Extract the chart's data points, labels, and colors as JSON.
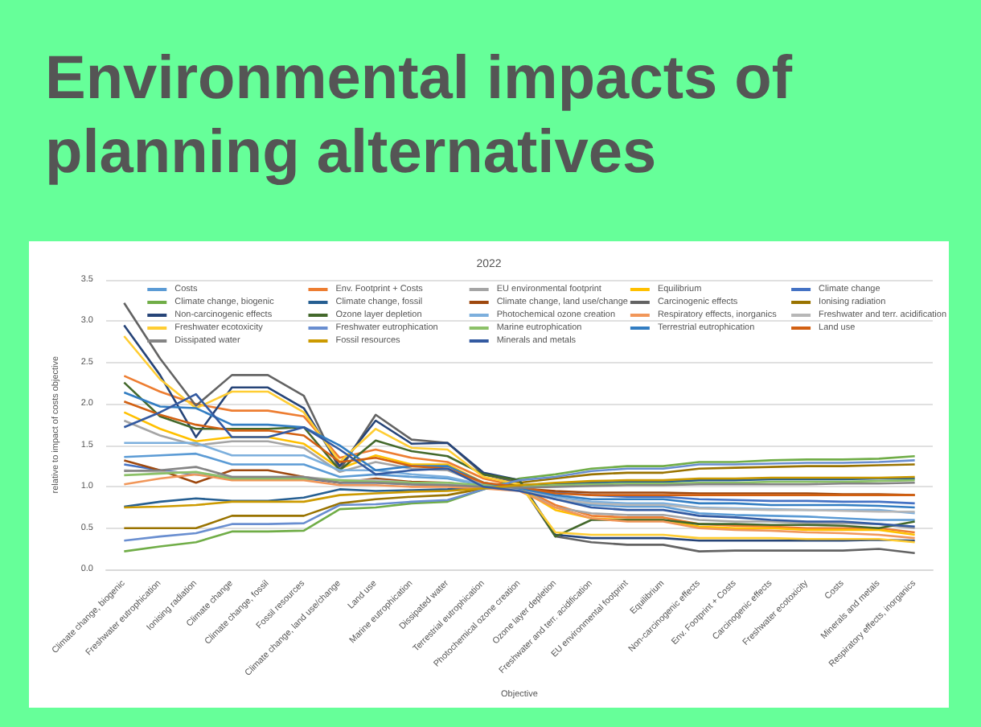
{
  "chart_data": {
    "type": "line",
    "title": "2022",
    "subtitle": "Environmental impacts of planning alternatives",
    "xlabel": "Objective",
    "ylabel": "relative to impact of costs objective",
    "categories": [
      "Climate change, biogenic",
      "Freshwater eutrophication",
      "Ionising radiation",
      "Climate change",
      "Climate change, fossil",
      "Fossil resources",
      "Climate change, land use/change",
      "Land use",
      "Marine eutrophication",
      "Dissipated water",
      "Terrestrial eutrophication",
      "Photochemical ozone creation",
      "Ozone layer depletion",
      "Freshwater and terr. acidification",
      "EU environmental footprint",
      "Equilibrium",
      "Non-carcinogenic effects",
      "Env. Footprint + Costs",
      "Carcinogenic effects",
      "Freshwater ecotoxicity",
      "Costs",
      "Minerals and metals",
      "Respiratory effects, inorganics"
    ],
    "ylim": [
      0,
      3.5
    ],
    "yticks": [
      {
        "value": 0,
        "label": "0.0"
      },
      {
        "value": 0.5,
        "label": "0.5"
      },
      {
        "value": 1,
        "label": "1.0"
      },
      {
        "value": 1.5,
        "label": "1.5"
      },
      {
        "value": 2,
        "label": "2.0"
      },
      {
        "value": 2.5,
        "label": "2.5"
      },
      {
        "value": 3,
        "label": "3.0"
      },
      {
        "value": 3.5,
        "label": "3.5"
      }
    ],
    "grid": "y",
    "legend": "top",
    "marker": "none",
    "line_style": "solid",
    "series": [
      {
        "name": "Costs",
        "color": "#5b9bd5",
        "values": [
          1.36,
          1.38,
          1.4,
          1.27,
          1.27,
          1.27,
          1.12,
          1.15,
          1.12,
          1.1,
          1.02,
          0.98,
          0.85,
          0.78,
          0.76,
          0.76,
          0.68,
          0.66,
          0.65,
          0.64,
          0.62,
          0.6,
          0.6
        ]
      },
      {
        "name": "Env. Footprint + Costs",
        "color": "#ed7d31",
        "values": [
          2.34,
          2.15,
          2.0,
          1.92,
          1.92,
          1.85,
          1.35,
          1.45,
          1.35,
          1.3,
          1.1,
          1.0,
          0.78,
          0.65,
          0.63,
          0.63,
          0.55,
          0.53,
          0.52,
          0.5,
          0.5,
          0.5,
          0.45
        ]
      },
      {
        "name": "EU environmental footprint",
        "color": "#a5a5a5",
        "values": [
          1.8,
          1.62,
          1.5,
          1.55,
          1.55,
          1.47,
          1.18,
          1.3,
          1.22,
          1.2,
          1.03,
          0.98,
          0.75,
          0.68,
          0.66,
          0.66,
          0.6,
          0.58,
          0.58,
          0.56,
          0.56,
          0.55,
          0.5
        ]
      },
      {
        "name": "Equilibrium",
        "color": "#ffc000",
        "values": [
          1.9,
          1.7,
          1.55,
          1.6,
          1.6,
          1.52,
          1.22,
          1.38,
          1.27,
          1.27,
          1.05,
          0.98,
          0.72,
          0.62,
          0.6,
          0.6,
          0.52,
          0.5,
          0.5,
          0.48,
          0.48,
          0.48,
          0.42
        ]
      },
      {
        "name": "Climate change",
        "color": "#4472c4",
        "values": [
          1.27,
          1.2,
          1.15,
          1.1,
          1.1,
          1.1,
          1.05,
          1.05,
          1.03,
          1.02,
          1.0,
          0.98,
          0.93,
          0.9,
          0.88,
          0.88,
          0.85,
          0.84,
          0.83,
          0.83,
          0.82,
          0.82,
          0.8
        ]
      },
      {
        "name": "Climate change, biogenic",
        "color": "#70ad47",
        "values": [
          0.22,
          0.28,
          0.33,
          0.46,
          0.46,
          0.47,
          0.73,
          0.75,
          0.8,
          0.82,
          0.97,
          1.1,
          1.15,
          1.22,
          1.25,
          1.25,
          1.3,
          1.3,
          1.32,
          1.33,
          1.33,
          1.34,
          1.37
        ]
      },
      {
        "name": "Climate change, fossil",
        "color": "#255e91",
        "values": [
          0.76,
          0.82,
          0.86,
          0.83,
          0.83,
          0.87,
          0.97,
          0.95,
          0.96,
          0.97,
          0.99,
          1.02,
          1.04,
          1.05,
          1.06,
          1.06,
          1.08,
          1.08,
          1.09,
          1.09,
          1.09,
          1.1,
          1.1
        ]
      },
      {
        "name": "Climate change, land use/change",
        "color": "#9e480e",
        "values": [
          1.32,
          1.2,
          1.05,
          1.2,
          1.2,
          1.12,
          1.05,
          1.1,
          1.06,
          1.05,
          1.0,
          0.98,
          0.95,
          0.93,
          0.93,
          0.93,
          0.92,
          0.92,
          0.92,
          0.92,
          0.91,
          0.91,
          0.9
        ]
      },
      {
        "name": "Carcinogenic effects",
        "color": "#636363",
        "values": [
          3.22,
          2.55,
          1.98,
          2.35,
          2.35,
          2.1,
          1.2,
          1.87,
          1.57,
          1.53,
          1.15,
          1.05,
          0.4,
          0.33,
          0.3,
          0.3,
          0.22,
          0.23,
          0.23,
          0.23,
          0.23,
          0.25,
          0.2
        ]
      },
      {
        "name": "Ionising radiation",
        "color": "#997300",
        "values": [
          0.5,
          0.5,
          0.5,
          0.65,
          0.65,
          0.65,
          0.8,
          0.85,
          0.88,
          0.9,
          0.98,
          1.05,
          1.1,
          1.15,
          1.17,
          1.17,
          1.22,
          1.23,
          1.24,
          1.25,
          1.25,
          1.26,
          1.27
        ]
      },
      {
        "name": "Non-carcinogenic effects",
        "color": "#264478",
        "values": [
          2.95,
          2.35,
          1.6,
          2.2,
          2.2,
          1.95,
          1.25,
          1.8,
          1.52,
          1.53,
          1.17,
          1.08,
          0.42,
          0.38,
          0.38,
          0.38,
          0.35,
          0.35,
          0.35,
          0.35,
          0.35,
          0.36,
          0.35
        ]
      },
      {
        "name": "Ozone layer depletion",
        "color": "#43682b",
        "values": [
          2.26,
          1.85,
          1.7,
          1.7,
          1.7,
          1.72,
          1.2,
          1.56,
          1.43,
          1.37,
          1.15,
          1.08,
          0.4,
          0.6,
          0.6,
          0.6,
          0.55,
          0.55,
          0.54,
          0.54,
          0.53,
          0.5,
          0.58
        ]
      },
      {
        "name": "Photochemical ozone creation",
        "color": "#7cafdd",
        "values": [
          1.53,
          1.53,
          1.53,
          1.38,
          1.38,
          1.38,
          1.2,
          1.2,
          1.15,
          1.12,
          1.02,
          0.97,
          0.88,
          0.82,
          0.8,
          0.8,
          0.75,
          0.74,
          0.73,
          0.72,
          0.72,
          0.72,
          0.68
        ]
      },
      {
        "name": "Respiratory effects, inorganics",
        "color": "#f1975a",
        "values": [
          1.03,
          1.1,
          1.15,
          1.08,
          1.08,
          1.08,
          1.02,
          1.02,
          1.0,
          1.0,
          0.98,
          0.95,
          0.75,
          0.62,
          0.58,
          0.58,
          0.5,
          0.48,
          0.47,
          0.45,
          0.44,
          0.42,
          0.38
        ]
      },
      {
        "name": "Freshwater and terr. acidification",
        "color": "#b7b7b7",
        "values": [
          1.2,
          1.18,
          1.17,
          1.12,
          1.12,
          1.12,
          1.08,
          1.08,
          1.05,
          1.04,
          1.0,
          0.97,
          0.85,
          0.8,
          0.78,
          0.78,
          0.74,
          0.73,
          0.72,
          0.72,
          0.71,
          0.7,
          0.7
        ]
      },
      {
        "name": "Freshwater ecotoxicity",
        "color": "#ffcd33",
        "values": [
          2.82,
          2.3,
          1.95,
          2.15,
          2.15,
          1.9,
          1.3,
          1.7,
          1.47,
          1.45,
          1.12,
          1.03,
          0.45,
          0.42,
          0.42,
          0.42,
          0.38,
          0.38,
          0.38,
          0.37,
          0.37,
          0.37,
          0.33
        ]
      },
      {
        "name": "Freshwater eutrophication",
        "color": "#698ed0",
        "values": [
          0.35,
          0.4,
          0.44,
          0.55,
          0.55,
          0.56,
          0.78,
          0.79,
          0.82,
          0.84,
          0.97,
          1.08,
          1.12,
          1.19,
          1.22,
          1.22,
          1.27,
          1.27,
          1.28,
          1.29,
          1.29,
          1.3,
          1.32
        ]
      },
      {
        "name": "Marine eutrophication",
        "color": "#8cc168",
        "values": [
          1.14,
          1.16,
          1.18,
          1.1,
          1.1,
          1.1,
          1.08,
          1.06,
          1.05,
          1.05,
          1.02,
          1.0,
          1.02,
          1.03,
          1.04,
          1.04,
          1.05,
          1.05,
          1.06,
          1.06,
          1.06,
          1.07,
          1.08
        ]
      },
      {
        "name": "Terrestrial eutrophication",
        "color": "#327dc2",
        "values": [
          2.14,
          1.97,
          1.95,
          1.75,
          1.75,
          1.72,
          1.5,
          1.2,
          1.25,
          1.25,
          1.05,
          0.98,
          0.9,
          0.85,
          0.85,
          0.85,
          0.8,
          0.8,
          0.78,
          0.78,
          0.78,
          0.77,
          0.75
        ]
      },
      {
        "name": "Land use",
        "color": "#d26012",
        "values": [
          2.03,
          1.87,
          1.75,
          1.68,
          1.68,
          1.62,
          1.3,
          1.35,
          1.25,
          1.22,
          1.05,
          1.0,
          0.92,
          0.9,
          0.9,
          0.9,
          0.9,
          0.9,
          0.9,
          0.9,
          0.9,
          0.9,
          0.9
        ]
      },
      {
        "name": "Dissipated water",
        "color": "#848484",
        "values": [
          1.19,
          1.2,
          1.24,
          1.12,
          1.12,
          1.12,
          1.05,
          1.05,
          1.03,
          1.02,
          1.0,
          0.99,
          1.0,
          1.01,
          1.02,
          1.02,
          1.03,
          1.03,
          1.03,
          1.03,
          1.04,
          1.04,
          1.05
        ]
      },
      {
        "name": "Fossil resources",
        "color": "#cc9a00",
        "values": [
          0.75,
          0.76,
          0.78,
          0.82,
          0.82,
          0.82,
          0.9,
          0.92,
          0.94,
          0.95,
          0.98,
          1.02,
          1.05,
          1.07,
          1.08,
          1.08,
          1.1,
          1.1,
          1.11,
          1.11,
          1.11,
          1.11,
          1.12
        ]
      },
      {
        "name": "Minerals and metals",
        "color": "#335aa1",
        "values": [
          1.72,
          1.9,
          2.12,
          1.6,
          1.6,
          1.72,
          1.45,
          1.15,
          1.2,
          1.22,
          1.0,
          0.95,
          0.85,
          0.75,
          0.72,
          0.72,
          0.65,
          0.63,
          0.6,
          0.58,
          0.58,
          0.55,
          0.52
        ]
      }
    ]
  }
}
